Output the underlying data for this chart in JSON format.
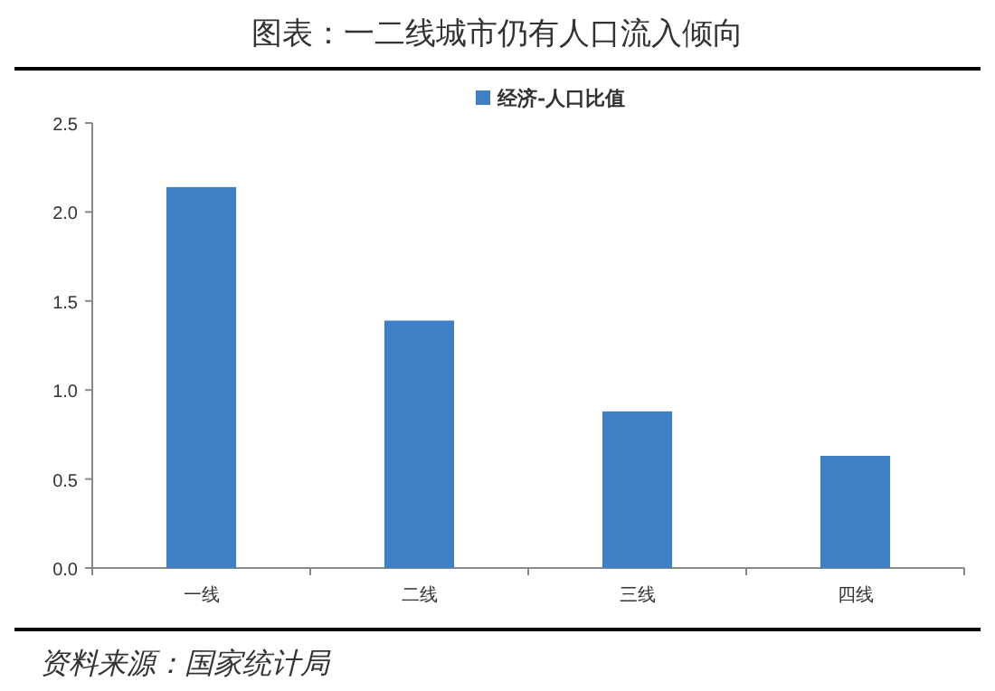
{
  "chart_data": {
    "type": "bar",
    "title": "图表：一二线城市仍有人口流入倾向",
    "categories": [
      "一线",
      "二线",
      "三线",
      "四线"
    ],
    "series": [
      {
        "name": "经济-人口比值",
        "color": "#3f7fc6",
        "values": [
          2.14,
          1.39,
          0.88,
          0.63
        ]
      }
    ],
    "ylim": [
      0,
      2.5
    ],
    "yticks": [
      {
        "value": 0,
        "label": "0.0"
      },
      {
        "value": 0.5,
        "label": "0.5"
      },
      {
        "value": 1,
        "label": "1.0"
      },
      {
        "value": 1.5,
        "label": "1.5"
      },
      {
        "value": 2,
        "label": "2.0"
      },
      {
        "value": 2.5,
        "label": "2.5"
      }
    ],
    "grid": false,
    "legend": "top",
    "annotations": [
      "资料来源：国家统计局"
    ]
  }
}
